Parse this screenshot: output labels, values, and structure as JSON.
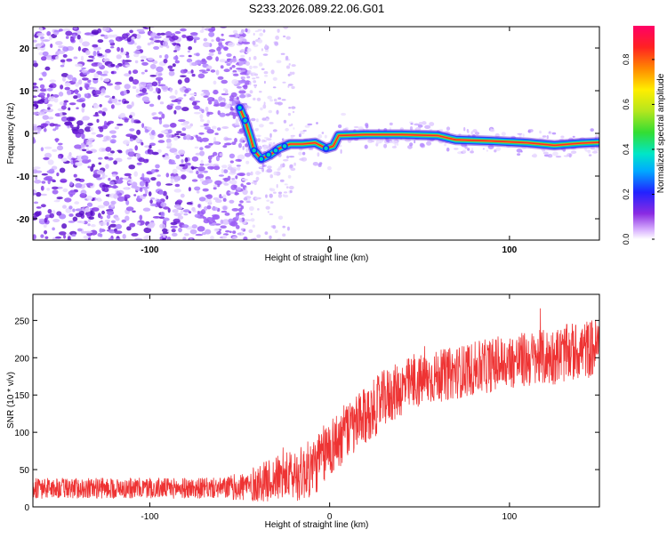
{
  "title": "S233.2026.089.22.06.G01",
  "chart_data": [
    {
      "type": "heatmap",
      "xlabel": "Height of straight line (km)",
      "ylabel": "Frequency (Hz)",
      "xlim": [
        -165,
        150
      ],
      "ylim": [
        -25,
        25
      ],
      "xticks": [
        -100,
        0,
        100
      ],
      "yticks": [
        -20,
        -10,
        0,
        10,
        20
      ],
      "colorbar": {
        "label": "Normalized spectral amplitude",
        "range": [
          0,
          0.95
        ],
        "ticks": [
          "0.0",
          "0.2",
          "0.4",
          "0.6",
          "0.8"
        ],
        "tick_values": [
          0,
          0.2,
          0.4,
          0.6,
          0.8
        ]
      },
      "ridge": {
        "description_points": [
          {
            "x": -50,
            "y": 6
          },
          {
            "x": -47,
            "y": 3
          },
          {
            "x": -44,
            "y": -1
          },
          {
            "x": -42,
            "y": -4
          },
          {
            "x": -38,
            "y": -6
          },
          {
            "x": -33,
            "y": -5
          },
          {
            "x": -28,
            "y": -3.5
          },
          {
            "x": -22,
            "y": -2.5
          },
          {
            "x": -15,
            "y": -2.5
          },
          {
            "x": -8,
            "y": -2.2
          },
          {
            "x": -2,
            "y": -3.5
          },
          {
            "x": 2,
            "y": -3
          },
          {
            "x": 5,
            "y": -0.5
          },
          {
            "x": 20,
            "y": -0.3
          },
          {
            "x": 40,
            "y": -0.3
          },
          {
            "x": 60,
            "y": -0.5
          },
          {
            "x": 70,
            "y": -1.5
          },
          {
            "x": 90,
            "y": -1.8
          },
          {
            "x": 110,
            "y": -2.2
          },
          {
            "x": 125,
            "y": -2.8
          },
          {
            "x": 140,
            "y": -2.3
          },
          {
            "x": 150,
            "y": -2.1
          }
        ]
      }
    },
    {
      "type": "line",
      "xlabel": "Height of straight line (km)",
      "ylabel": "SNR (10 * v/v)",
      "xlim": [
        -165,
        150
      ],
      "ylim": [
        0,
        285
      ],
      "xticks": [
        -100,
        0,
        100
      ],
      "yticks": [
        0,
        50,
        100,
        150,
        200,
        250
      ],
      "color": "#ee3333",
      "trend": [
        {
          "x": -165,
          "y": 25
        },
        {
          "x": -60,
          "y": 25
        },
        {
          "x": -45,
          "y": 28
        },
        {
          "x": -30,
          "y": 38
        },
        {
          "x": -15,
          "y": 45
        },
        {
          "x": -8,
          "y": 55
        },
        {
          "x": 0,
          "y": 80
        },
        {
          "x": 10,
          "y": 100
        },
        {
          "x": 20,
          "y": 120
        },
        {
          "x": 30,
          "y": 145
        },
        {
          "x": 45,
          "y": 165
        },
        {
          "x": 60,
          "y": 175
        },
        {
          "x": 80,
          "y": 185
        },
        {
          "x": 100,
          "y": 195
        },
        {
          "x": 120,
          "y": 200
        },
        {
          "x": 140,
          "y": 210
        },
        {
          "x": 150,
          "y": 215
        }
      ],
      "noise_amplitude": [
        {
          "x": -165,
          "y": 14
        },
        {
          "x": -60,
          "y": 14
        },
        {
          "x": -40,
          "y": 25
        },
        {
          "x": -10,
          "y": 40
        },
        {
          "x": 20,
          "y": 40
        },
        {
          "x": 60,
          "y": 35
        },
        {
          "x": 150,
          "y": 40
        }
      ]
    }
  ]
}
